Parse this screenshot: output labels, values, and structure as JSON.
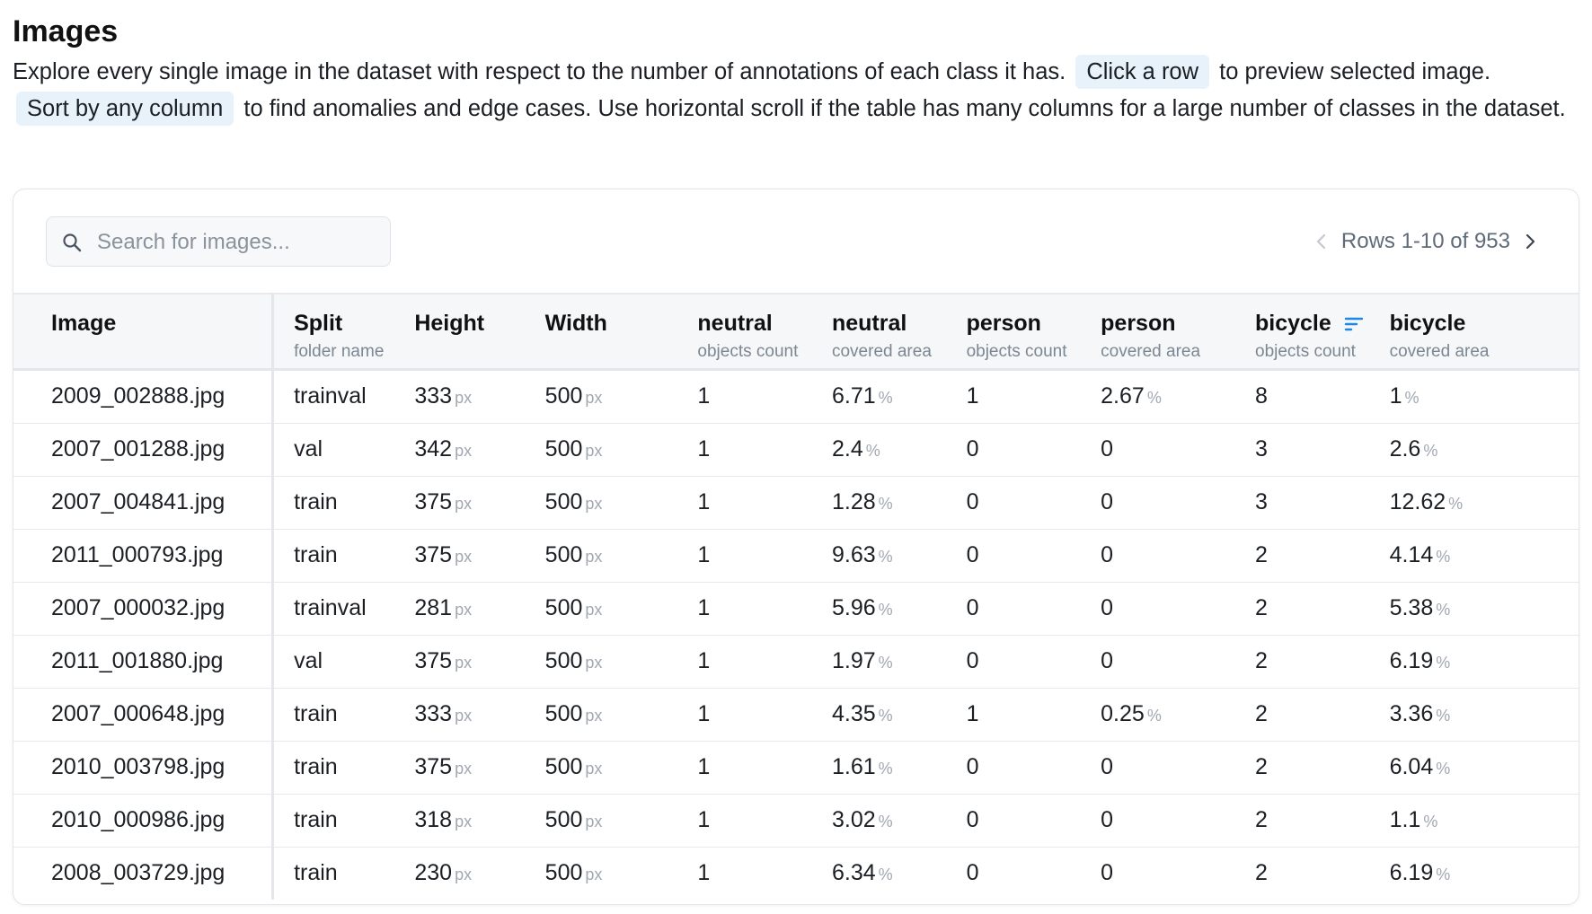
{
  "heading": "Images",
  "description": {
    "part1": "Explore every single image in the dataset with respect to the number of annotations of each class it has.",
    "chip1": "Click a row",
    "part2": "to preview selected image.",
    "chip2": "Sort by any column",
    "part3": "to find anomalies and edge cases. Use horizontal scroll if the table has many columns for a large number of classes in the dataset."
  },
  "search": {
    "placeholder": "Search for images...",
    "value": ""
  },
  "pager": {
    "text": "Rows 1-10 of 953"
  },
  "accent_color": "#1e88e5",
  "units": {
    "px": "px",
    "percent": "%"
  },
  "columns": [
    {
      "title": "Image",
      "sub": ""
    },
    {
      "title": "Split",
      "sub": "folder name"
    },
    {
      "title": "Height",
      "sub": ""
    },
    {
      "title": "Width",
      "sub": ""
    },
    {
      "title": "neutral",
      "sub": "objects count"
    },
    {
      "title": "neutral",
      "sub": "covered area"
    },
    {
      "title": "person",
      "sub": "objects count"
    },
    {
      "title": "person",
      "sub": "covered area"
    },
    {
      "title": "bicycle",
      "sub": "objects count",
      "sorted": true
    },
    {
      "title": "bicycle",
      "sub": "covered area"
    }
  ],
  "rows": [
    {
      "image": "2009_002888.jpg",
      "split": "trainval",
      "height": "333",
      "width": "500",
      "neutral_count": "1",
      "neutral_area": "6.71",
      "person_count": "1",
      "person_area": "2.67",
      "bicycle_count": "8",
      "bicycle_area": "1"
    },
    {
      "image": "2007_001288.jpg",
      "split": "val",
      "height": "342",
      "width": "500",
      "neutral_count": "1",
      "neutral_area": "2.4",
      "person_count": "0",
      "person_area": "0",
      "bicycle_count": "3",
      "bicycle_area": "2.6"
    },
    {
      "image": "2007_004841.jpg",
      "split": "train",
      "height": "375",
      "width": "500",
      "neutral_count": "1",
      "neutral_area": "1.28",
      "person_count": "0",
      "person_area": "0",
      "bicycle_count": "3",
      "bicycle_area": "12.62"
    },
    {
      "image": "2011_000793.jpg",
      "split": "train",
      "height": "375",
      "width": "500",
      "neutral_count": "1",
      "neutral_area": "9.63",
      "person_count": "0",
      "person_area": "0",
      "bicycle_count": "2",
      "bicycle_area": "4.14"
    },
    {
      "image": "2007_000032.jpg",
      "split": "trainval",
      "height": "281",
      "width": "500",
      "neutral_count": "1",
      "neutral_area": "5.96",
      "person_count": "0",
      "person_area": "0",
      "bicycle_count": "2",
      "bicycle_area": "5.38"
    },
    {
      "image": "2011_001880.jpg",
      "split": "val",
      "height": "375",
      "width": "500",
      "neutral_count": "1",
      "neutral_area": "1.97",
      "person_count": "0",
      "person_area": "0",
      "bicycle_count": "2",
      "bicycle_area": "6.19"
    },
    {
      "image": "2007_000648.jpg",
      "split": "train",
      "height": "333",
      "width": "500",
      "neutral_count": "1",
      "neutral_area": "4.35",
      "person_count": "1",
      "person_area": "0.25",
      "bicycle_count": "2",
      "bicycle_area": "3.36"
    },
    {
      "image": "2010_003798.jpg",
      "split": "train",
      "height": "375",
      "width": "500",
      "neutral_count": "1",
      "neutral_area": "1.61",
      "person_count": "0",
      "person_area": "0",
      "bicycle_count": "2",
      "bicycle_area": "6.04"
    },
    {
      "image": "2010_000986.jpg",
      "split": "train",
      "height": "318",
      "width": "500",
      "neutral_count": "1",
      "neutral_area": "3.02",
      "person_count": "0",
      "person_area": "0",
      "bicycle_count": "2",
      "bicycle_area": "1.1"
    },
    {
      "image": "2008_003729.jpg",
      "split": "train",
      "height": "230",
      "width": "500",
      "neutral_count": "1",
      "neutral_area": "6.34",
      "person_count": "0",
      "person_area": "0",
      "bicycle_count": "2",
      "bicycle_area": "6.19"
    }
  ]
}
